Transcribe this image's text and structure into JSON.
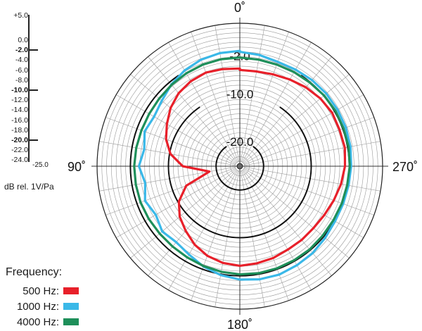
{
  "chart_data": {
    "type": "polar",
    "angle_labels": {
      "top": "0˚",
      "left": "90˚",
      "right": "270˚",
      "bottom": "180˚"
    },
    "ring_labels": [
      "-2.0",
      "-10.0",
      "-20.0"
    ],
    "scale": {
      "ticks": [
        "+5.0",
        "0.0",
        "-2.0",
        "-4.0",
        "-6.0",
        "-8.0",
        "-10.0",
        "-12.0",
        "-14.0",
        "-16.0",
        "-18.0",
        "-20.0",
        "-22.0",
        "-24.0"
      ],
      "major_ticks": [
        "-2.0",
        "-10.0",
        "-20.0"
      ],
      "min_label": "-25.0",
      "unit": "dB rel. 1V/Pa"
    },
    "rlim": [
      -25,
      5
    ],
    "rings_db": [
      0,
      -2,
      -5,
      -10,
      -15,
      -20
    ],
    "grid": true,
    "legend_title": "Frequency:",
    "series": [
      {
        "name": "500 Hz:",
        "color": "#e8202a",
        "values": [
          -4.5,
          -4.3,
          -4.1,
          -4.4,
          -5.0,
          -6.0,
          -7.3,
          -8.5,
          -10.2,
          -13.0,
          -18.5,
          -13.0,
          -10.2,
          -8.5,
          -7.3,
          -6.0,
          -5.0,
          -4.4,
          -4.1,
          -4.3,
          -4.5,
          -4.8,
          -4.8,
          -4.8,
          -4.5,
          -4.0,
          -3.4,
          -2.9,
          -2.6,
          -2.7,
          -2.6,
          -2.9,
          -3.4,
          -4.0,
          -4.5,
          -4.8,
          -4.8
        ]
      },
      {
        "name": "1000 Hz:",
        "color": "#3ab8e8",
        "values": [
          -0.8,
          -0.9,
          -1.2,
          -1.8,
          -2.6,
          -3.6,
          -4.2,
          -3.7,
          -4.6,
          -3.8,
          -4.8,
          -3.8,
          -4.6,
          -3.7,
          -4.2,
          -3.6,
          -2.6,
          -1.8,
          -1.2,
          -0.9,
          -0.8,
          -1.0,
          -1.2,
          -1.6,
          -1.9,
          -1.9,
          -1.8,
          -1.6,
          -1.4,
          -1.3,
          -1.3,
          -1.3,
          -1.4,
          -1.6,
          -1.7,
          -1.3,
          -1.0
        ]
      },
      {
        "name": "4000 Hz:",
        "color": "#1e8f5a",
        "values": [
          -2.2,
          -2.2,
          -2.3,
          -2.5,
          -2.7,
          -2.9,
          -3.0,
          -3.0,
          -2.9,
          -2.8,
          -2.8,
          -2.8,
          -2.9,
          -3.0,
          -3.0,
          -2.9,
          -2.7,
          -2.5,
          -2.3,
          -2.2,
          -2.2,
          -2.2,
          -2.2,
          -2.3,
          -2.3,
          -2.2,
          -2.1,
          -1.9,
          -1.8,
          -1.8,
          -1.8,
          -1.9,
          -2.1,
          -2.2,
          -2.3,
          -2.3,
          -2.2
        ]
      }
    ],
    "angle_step_deg": 10,
    "angle_direction": "counterclockwise from top"
  }
}
